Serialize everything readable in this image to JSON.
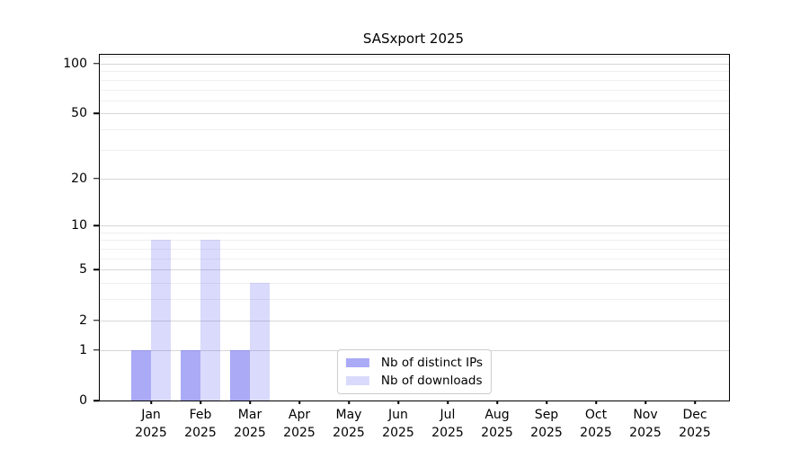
{
  "title": "SASxport 2025",
  "chart_data": {
    "type": "bar",
    "title": "SASxport 2025",
    "categories": [
      {
        "month": "Jan",
        "year": "2025"
      },
      {
        "month": "Feb",
        "year": "2025"
      },
      {
        "month": "Mar",
        "year": "2025"
      },
      {
        "month": "Apr",
        "year": "2025"
      },
      {
        "month": "May",
        "year": "2025"
      },
      {
        "month": "Jun",
        "year": "2025"
      },
      {
        "month": "Jul",
        "year": "2025"
      },
      {
        "month": "Aug",
        "year": "2025"
      },
      {
        "month": "Sep",
        "year": "2025"
      },
      {
        "month": "Oct",
        "year": "2025"
      },
      {
        "month": "Nov",
        "year": "2025"
      },
      {
        "month": "Dec",
        "year": "2025"
      }
    ],
    "series": [
      {
        "name": "Nb of distinct IPs",
        "color": "#5555f080",
        "rendered_color": "#a9a9f6",
        "values": [
          1,
          1,
          1,
          0,
          0,
          0,
          0,
          0,
          0,
          0,
          0,
          0
        ]
      },
      {
        "name": "Nb of downloads",
        "color": "#5555f038",
        "rendered_color": "#d9d9f7",
        "values": [
          8,
          8,
          4,
          0,
          0,
          0,
          0,
          0,
          0,
          0,
          0,
          0
        ]
      }
    ],
    "y_axis": {
      "scale": "log10(1+y)",
      "ticks": [
        0,
        1,
        2,
        5,
        10,
        20,
        50,
        100
      ],
      "minor_ticks": [
        3,
        4,
        6,
        7,
        8,
        9,
        30,
        40,
        60,
        70,
        80,
        90,
        110
      ],
      "top": 113
    },
    "xlabel": "",
    "ylabel": "",
    "grid": true,
    "legend_position": "inside-bottom-center",
    "colors": {
      "major_grid": "#d6d6d6",
      "minor_grid": "#efefef",
      "axis": "#000000",
      "background": "#ffffff"
    }
  }
}
